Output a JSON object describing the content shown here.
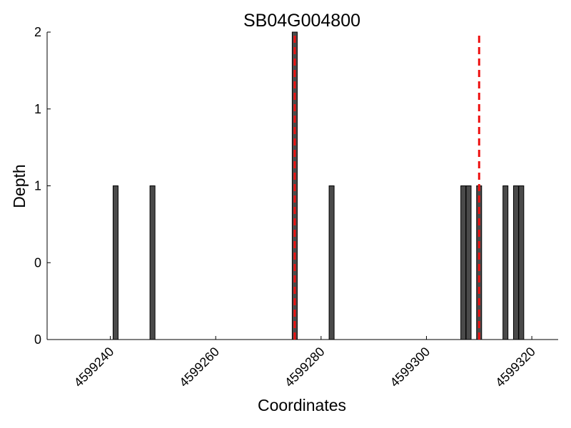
{
  "chart_data": {
    "type": "bar",
    "title": "SB04G004800",
    "xlabel": "Coordinates",
    "ylabel": "Depth",
    "xlim": [
      4599228,
      4599325
    ],
    "ylim": [
      0,
      2
    ],
    "x_ticks": [
      4599240,
      4599260,
      4599280,
      4599300,
      4599320
    ],
    "x_tick_labels": [
      "4599240",
      "4599260",
      "4599280",
      "4599300",
      "4599320"
    ],
    "y_ticks": [
      0,
      0.5,
      1,
      1.5,
      2
    ],
    "y_tick_labels": [
      "0",
      "0",
      "1",
      "1",
      "2"
    ],
    "grid": false,
    "bar_color": "#4a4a4a",
    "bar_edge_color": "#000000",
    "marker_color": "#ee1111",
    "series": [
      {
        "x": [
          4599241,
          4599248,
          4599275,
          4599282,
          4599307,
          4599308,
          4599310,
          4599315,
          4599317,
          4599318
        ],
        "values": [
          1,
          1,
          2,
          1,
          1,
          1,
          1,
          1,
          1,
          1
        ]
      }
    ],
    "markers": [
      4599275,
      4599310
    ]
  }
}
